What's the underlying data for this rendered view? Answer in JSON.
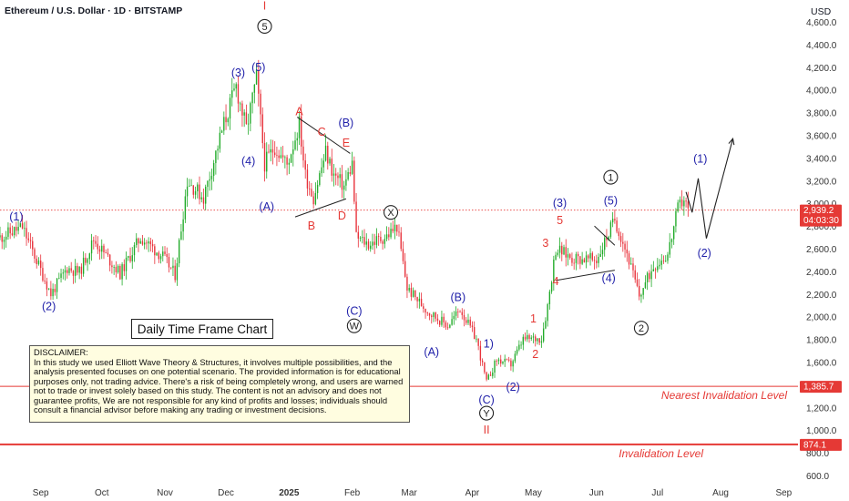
{
  "header": {
    "title": "Ethereum / U.S. Dollar · 1D · BITSTAMP",
    "currency": "USD"
  },
  "chart_data": {
    "type": "candlestick",
    "title": "Ethereum / U.S. Dollar · 1D · BITSTAMP",
    "y_axis": {
      "unit": "USD",
      "ticks": [
        "600.0",
        "800.0",
        "1,000.0",
        "1,200.0",
        "1,400.0",
        "1,600.0",
        "1,800.0",
        "2,000.0",
        "2,200.0",
        "2,400.0",
        "2,600.0",
        "2,800.0",
        "3,000.0",
        "3,200.0",
        "3,400.0",
        "3,600.0",
        "3,800.0",
        "4,000.0",
        "4,200.0",
        "4,400.0",
        "4,600.0"
      ],
      "tick_values": [
        600,
        800,
        1000,
        1200,
        1400,
        1600,
        1800,
        2000,
        2200,
        2400,
        2600,
        2800,
        3000,
        3200,
        3400,
        3600,
        3800,
        4000,
        4200,
        4400,
        4600
      ],
      "range": [
        560,
        4700
      ]
    },
    "x_axis": {
      "ticks": [
        "Sep",
        "Oct",
        "Nov",
        "Dec",
        "2025",
        "Feb",
        "Mar",
        "Apr",
        "May",
        "Jun",
        "Jul",
        "Aug",
        "Sep"
      ],
      "tick_dates": [
        "2024-09-01",
        "2024-10-01",
        "2024-11-01",
        "2024-12-01",
        "2025-01-01",
        "2025-02-01",
        "2025-03-01",
        "2025-04-01",
        "2025-05-01",
        "2025-06-01",
        "2025-07-01",
        "2025-08-01",
        "2025-09-01"
      ],
      "range": [
        "2024-08-12",
        "2025-09-08"
      ]
    },
    "price_path": [
      [
        "2024-08-12",
        2700
      ],
      [
        "2024-08-23",
        2790
      ],
      [
        "2024-09-06",
        2200
      ],
      [
        "2024-09-14",
        2430
      ],
      [
        "2024-09-20",
        2390
      ],
      [
        "2024-09-27",
        2680
      ],
      [
        "2024-10-10",
        2380
      ],
      [
        "2024-10-20",
        2700
      ],
      [
        "2024-10-31",
        2530
      ],
      [
        "2024-11-06",
        2370
      ],
      [
        "2024-11-12",
        3200
      ],
      [
        "2024-11-20",
        3050
      ],
      [
        "2024-11-30",
        3700
      ],
      [
        "2024-12-06",
        4030
      ],
      [
        "2024-12-11",
        3650
      ],
      [
        "2024-12-16",
        4100
      ],
      [
        "2024-12-20",
        3350
      ],
      [
        "2024-12-25",
        3500
      ],
      [
        "2024-12-31",
        3340
      ],
      [
        "2025-01-06",
        3700
      ],
      [
        "2025-01-09",
        3250
      ],
      [
        "2025-01-13",
        3050
      ],
      [
        "2025-01-19",
        3450
      ],
      [
        "2025-01-23",
        3250
      ],
      [
        "2025-01-28",
        3150
      ],
      [
        "2025-02-01",
        3350
      ],
      [
        "2025-02-03",
        2700
      ],
      [
        "2025-02-09",
        2640
      ],
      [
        "2025-02-18",
        2710
      ],
      [
        "2025-02-23",
        2800
      ],
      [
        "2025-02-28",
        2250
      ],
      [
        "2025-03-10",
        2050
      ],
      [
        "2025-03-20",
        1920
      ],
      [
        "2025-03-26",
        2070
      ],
      [
        "2025-04-03",
        1800
      ],
      [
        "2025-04-08",
        1420
      ],
      [
        "2025-04-13",
        1620
      ],
      [
        "2025-04-20",
        1580
      ],
      [
        "2025-04-26",
        1800
      ],
      [
        "2025-05-05",
        1810
      ],
      [
        "2025-05-08",
        2100
      ],
      [
        "2025-05-12",
        2600
      ],
      [
        "2025-05-20",
        2520
      ],
      [
        "2025-06-01",
        2500
      ],
      [
        "2025-06-10",
        2860
      ],
      [
        "2025-06-16",
        2560
      ],
      [
        "2025-06-22",
        2180
      ],
      [
        "2025-06-29",
        2450
      ],
      [
        "2025-07-06",
        2550
      ],
      [
        "2025-07-11",
        2950
      ],
      [
        "2025-07-14",
        3050
      ],
      [
        "2025-07-16",
        2940
      ]
    ],
    "last_price": {
      "value": "2,939.2",
      "countdown": "04:03:30"
    },
    "invalidation_levels": [
      {
        "price": 1385.7,
        "price_label": "1,385.7",
        "name": "Nearest Invalidation Level",
        "color": "#e53935"
      },
      {
        "price": 874.1,
        "price_label": "874.1",
        "name": "Invalidation Level",
        "color": "#e53935"
      }
    ],
    "wave_labels": [
      {
        "text": "I",
        "date": "2024-12-20",
        "price": 4740,
        "color": "#e53935",
        "style": "plain"
      },
      {
        "text": "5",
        "date": "2024-12-20",
        "price": 4560,
        "color": "#222222",
        "style": "circle"
      },
      {
        "text": "(3)",
        "date": "2024-12-07",
        "price": 4150,
        "color": "#2222aa",
        "style": "plain"
      },
      {
        "text": "(5)",
        "date": "2024-12-17",
        "price": 4200,
        "color": "#2222aa",
        "style": "plain"
      },
      {
        "text": "(4)",
        "date": "2024-12-12",
        "price": 3370,
        "color": "#2222aa",
        "style": "plain"
      },
      {
        "text": "(A)",
        "date": "2024-12-21",
        "price": 2970,
        "color": "#2222aa",
        "style": "plain"
      },
      {
        "text": "A",
        "date": "2025-01-06",
        "price": 3810,
        "color": "#e53935",
        "style": "plain"
      },
      {
        "text": "C",
        "date": "2025-01-17",
        "price": 3630,
        "color": "#e53935",
        "style": "plain"
      },
      {
        "text": "(B)",
        "date": "2025-01-29",
        "price": 3710,
        "color": "#2222aa",
        "style": "plain"
      },
      {
        "text": "E",
        "date": "2025-01-29",
        "price": 3530,
        "color": "#e53935",
        "style": "plain"
      },
      {
        "text": "B",
        "date": "2025-01-12",
        "price": 2800,
        "color": "#e53935",
        "style": "plain"
      },
      {
        "text": "D",
        "date": "2025-01-27",
        "price": 2890,
        "color": "#e53935",
        "style": "plain"
      },
      {
        "text": "X",
        "date": "2025-02-20",
        "price": 2920,
        "color": "#222222",
        "style": "circle"
      },
      {
        "text": "(C)",
        "date": "2025-02-02",
        "price": 2050,
        "color": "#2222aa",
        "style": "plain"
      },
      {
        "text": "W",
        "date": "2025-02-02",
        "price": 1920,
        "color": "#222222",
        "style": "circle"
      },
      {
        "text": "(1)",
        "date": "2024-08-20",
        "price": 2880,
        "color": "#2222aa",
        "style": "plain"
      },
      {
        "text": "(2)",
        "date": "2024-09-05",
        "price": 2090,
        "color": "#2222aa",
        "style": "plain"
      },
      {
        "text": "(B)",
        "date": "2025-03-25",
        "price": 2170,
        "color": "#2222aa",
        "style": "plain"
      },
      {
        "text": "(A)",
        "date": "2025-03-12",
        "price": 1690,
        "color": "#2222aa",
        "style": "plain"
      },
      {
        "text": "1)",
        "date": "2025-04-09",
        "price": 1760,
        "color": "#2222aa",
        "style": "plain"
      },
      {
        "text": "(2)",
        "date": "2025-04-21",
        "price": 1380,
        "color": "#2222aa",
        "style": "plain"
      },
      {
        "text": "(C)",
        "date": "2025-04-08",
        "price": 1265,
        "color": "#2222aa",
        "style": "plain"
      },
      {
        "text": "Y",
        "date": "2025-04-08",
        "price": 1150,
        "color": "#222222",
        "style": "circle"
      },
      {
        "text": "II",
        "date": "2025-04-08",
        "price": 1000,
        "color": "#e53935",
        "style": "plain"
      },
      {
        "text": "1",
        "date": "2025-05-01",
        "price": 1980,
        "color": "#e53935",
        "style": "plain"
      },
      {
        "text": "2",
        "date": "2025-05-02",
        "price": 1670,
        "color": "#e53935",
        "style": "plain"
      },
      {
        "text": "3",
        "date": "2025-05-07",
        "price": 2650,
        "color": "#e53935",
        "style": "plain"
      },
      {
        "text": "4",
        "date": "2025-05-12",
        "price": 2310,
        "color": "#e53935",
        "style": "plain"
      },
      {
        "text": "5",
        "date": "2025-05-14",
        "price": 2850,
        "color": "#e53935",
        "style": "plain"
      },
      {
        "text": "(3)",
        "date": "2025-05-14",
        "price": 3000,
        "color": "#2222aa",
        "style": "plain"
      },
      {
        "text": "(5)",
        "date": "2025-06-08",
        "price": 3020,
        "color": "#2222aa",
        "style": "plain"
      },
      {
        "text": "1",
        "date": "2025-06-08",
        "price": 3230,
        "color": "#222222",
        "style": "circle"
      },
      {
        "text": "(4)",
        "date": "2025-06-07",
        "price": 2340,
        "color": "#2222aa",
        "style": "plain"
      },
      {
        "text": "2",
        "date": "2025-06-23",
        "price": 1900,
        "color": "#222222",
        "style": "circle"
      },
      {
        "text": "(1)",
        "date": "2025-07-22",
        "price": 3390,
        "color": "#2222aa",
        "style": "plain"
      },
      {
        "text": "(2)",
        "date": "2025-07-24",
        "price": 2560,
        "color": "#2222aa",
        "style": "plain"
      }
    ],
    "triangle_lines": [
      [
        [
          "2025-01-05",
          3760
        ],
        [
          "2025-01-31",
          3440
        ]
      ],
      [
        [
          "2025-01-04",
          2880
        ],
        [
          "2025-01-29",
          3040
        ]
      ],
      [
        [
          "2025-05-31",
          2800
        ],
        [
          "2025-06-10",
          2630
        ]
      ],
      [
        [
          "2025-05-12",
          2320
        ],
        [
          "2025-06-10",
          2410
        ]
      ]
    ],
    "projection_path": [
      [
        "2025-07-15",
        3100
      ],
      [
        "2025-07-18",
        2920
      ],
      [
        "2025-07-21",
        3220
      ],
      [
        "2025-07-25",
        2690
      ],
      [
        "2025-08-07",
        3570
      ]
    ],
    "labels": {
      "timeframe": "Daily Time Frame Chart"
    }
  },
  "disclaimer": {
    "heading": "DISCLAIMER:",
    "body": "In this study we used Elliott Wave Theory & Structures, it involves multiple possibilities, and the analysis presented focuses on one potential scenario. The provided information is for educational purposes only, not trading advice. There's a risk of being completely wrong, and users are warned not to trade or invest solely based on this study. The content is not an advisory and does not guarantee profits, We are not responsible for any kind of profits and losses; individuals should consult a financial advisor before making any trading or investment decisions."
  }
}
